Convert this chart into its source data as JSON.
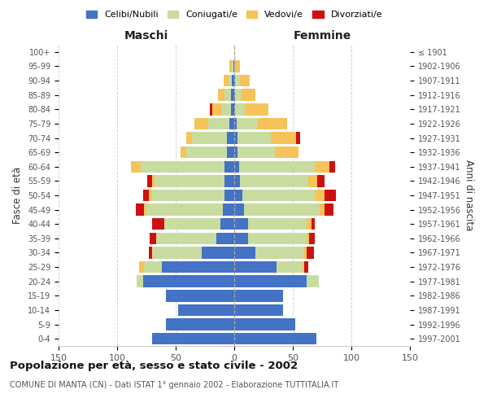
{
  "age_groups": [
    "0-4",
    "5-9",
    "10-14",
    "15-19",
    "20-24",
    "25-29",
    "30-34",
    "35-39",
    "40-44",
    "45-49",
    "50-54",
    "55-59",
    "60-64",
    "65-69",
    "70-74",
    "75-79",
    "80-84",
    "85-89",
    "90-94",
    "95-99",
    "100+"
  ],
  "birth_years": [
    "1997-2001",
    "1992-1996",
    "1987-1991",
    "1982-1986",
    "1977-1981",
    "1972-1976",
    "1967-1971",
    "1962-1966",
    "1957-1961",
    "1952-1956",
    "1947-1951",
    "1942-1946",
    "1937-1941",
    "1932-1936",
    "1927-1931",
    "1922-1926",
    "1917-1921",
    "1912-1916",
    "1907-1911",
    "1902-1906",
    "≤ 1901"
  ],
  "male_celibi": [
    70,
    58,
    48,
    58,
    78,
    62,
    28,
    15,
    12,
    10,
    8,
    8,
    8,
    6,
    6,
    4,
    3,
    3,
    2,
    1,
    0
  ],
  "male_coniugati": [
    0,
    0,
    0,
    0,
    5,
    15,
    42,
    52,
    48,
    65,
    62,
    60,
    72,
    35,
    30,
    18,
    8,
    5,
    3,
    1,
    0
  ],
  "male_vedovi": [
    0,
    0,
    0,
    0,
    0,
    4,
    0,
    0,
    0,
    2,
    3,
    2,
    8,
    5,
    5,
    12,
    8,
    6,
    4,
    2,
    0
  ],
  "male_divorziati": [
    0,
    0,
    0,
    0,
    0,
    0,
    3,
    5,
    10,
    7,
    5,
    4,
    0,
    0,
    0,
    0,
    2,
    0,
    0,
    0,
    0
  ],
  "female_celibi": [
    70,
    52,
    42,
    42,
    62,
    36,
    18,
    12,
    12,
    8,
    7,
    5,
    4,
    3,
    3,
    2,
    1,
    1,
    1,
    0,
    0
  ],
  "female_coniugati": [
    0,
    0,
    0,
    0,
    10,
    22,
    42,
    50,
    50,
    65,
    62,
    58,
    65,
    32,
    28,
    18,
    8,
    5,
    4,
    1,
    0
  ],
  "female_vedovi": [
    0,
    0,
    0,
    0,
    0,
    2,
    2,
    2,
    4,
    4,
    8,
    8,
    12,
    20,
    22,
    25,
    20,
    12,
    8,
    4,
    1
  ],
  "female_divorziati": [
    0,
    0,
    0,
    0,
    0,
    3,
    6,
    5,
    3,
    8,
    10,
    6,
    5,
    0,
    3,
    0,
    0,
    0,
    0,
    0,
    0
  ],
  "colors": {
    "celibi": "#4472c4",
    "coniugati": "#c8dca0",
    "vedovi": "#f5c35a",
    "divorziati": "#cc1111"
  },
  "xlim": 150,
  "title": "Popolazione per età, sesso e stato civile - 2002",
  "subtitle": "COMUNE DI MANTA (CN) - Dati ISTAT 1° gennaio 2002 - Elaborazione TUTTITALIA.IT",
  "ylabel": "Fasce di età",
  "ylabel_right": "Anni di nascita",
  "xlabel_maschi": "Maschi",
  "xlabel_femmine": "Femmine",
  "bg_color": "#ffffff",
  "grid_color": "#cccccc"
}
